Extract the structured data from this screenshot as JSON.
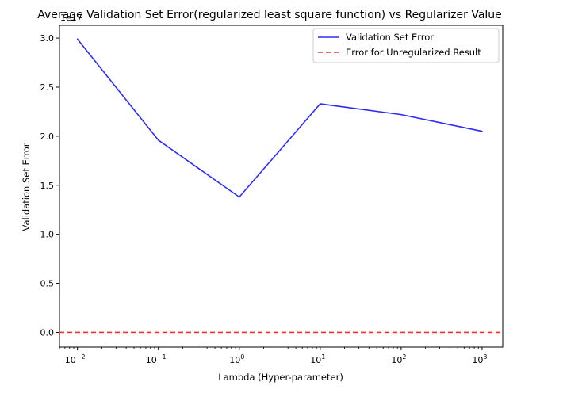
{
  "chart_data": {
    "type": "line",
    "title": "Average Validation Set Error(regularized least square function) vs Regularizer Value",
    "xlabel": "Lambda (Hyper-parameter)",
    "ylabel": "Validation Set Error",
    "offset_label": "1e17",
    "x_scale": "log",
    "xlim": [
      0.006,
      1800
    ],
    "ylim": [
      -0.15,
      3.13
    ],
    "x": [
      0.01,
      0.1,
      1,
      10,
      100,
      1000
    ],
    "x_tick_labels": [
      {
        "base": "10",
        "exp": "−2"
      },
      {
        "base": "10",
        "exp": "−1"
      },
      {
        "base": "10",
        "exp": "0"
      },
      {
        "base": "10",
        "exp": "1"
      },
      {
        "base": "10",
        "exp": "2"
      },
      {
        "base": "10",
        "exp": "3"
      }
    ],
    "y_ticks": [
      0.0,
      0.5,
      1.0,
      1.5,
      2.0,
      2.5,
      3.0
    ],
    "y_tick_labels": [
      "0.0",
      "0.5",
      "1.0",
      "1.5",
      "2.0",
      "2.5",
      "3.0"
    ],
    "series": [
      {
        "name": "Validation Set Error",
        "values": [
          2.99,
          1.96,
          1.38,
          2.33,
          2.22,
          2.05
        ],
        "color": "#2b2bff",
        "style": "solid"
      },
      {
        "name": "Error for Unregularized Result",
        "hline": 0.0,
        "color": "#ff2b2b",
        "style": "dashed"
      }
    ],
    "legend_position": "top-right",
    "grid": false
  }
}
